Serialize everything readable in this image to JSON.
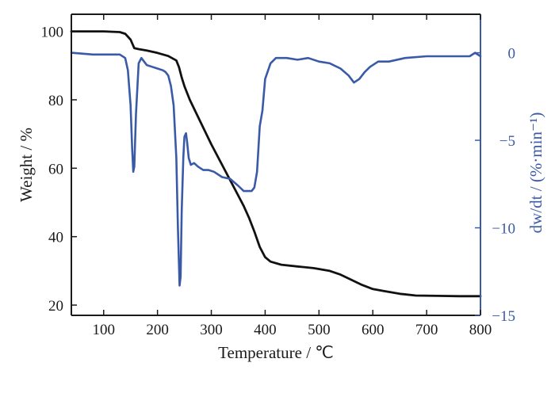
{
  "chart_data": {
    "type": "line",
    "xlabel": "Temperature / ℃",
    "ylabel_left": "Weight / %",
    "ylabel_right": "dw/dt / (%·min⁻¹)",
    "xlim": [
      40,
      800
    ],
    "ylim_left": [
      17,
      105
    ],
    "ylim_right": [
      -15,
      2.2
    ],
    "x_ticks": [
      100,
      200,
      300,
      400,
      500,
      600,
      700,
      800
    ],
    "y_left_ticks": [
      20,
      40,
      60,
      80,
      100
    ],
    "y_right_ticks": [
      0,
      -5,
      -10,
      -15
    ],
    "grid": false,
    "colors": {
      "weight": "#111111",
      "derivative": "#3a5aa8",
      "axis": "#1a1a1a"
    },
    "series": [
      {
        "axis": "left",
        "x": [
          40,
          100,
          130,
          140,
          150,
          157,
          165,
          180,
          200,
          220,
          235,
          240,
          245,
          250,
          260,
          280,
          300,
          320,
          340,
          360,
          370,
          380,
          390,
          400,
          410,
          430,
          460,
          490,
          520,
          540,
          560,
          580,
          600,
          620,
          650,
          680,
          720,
          760,
          800
        ],
        "values": [
          100,
          100,
          99.8,
          99.3,
          97.6,
          95.1,
          94.8,
          94.4,
          93.7,
          92.8,
          91.5,
          89.5,
          86.5,
          84,
          80,
          73.5,
          67,
          61,
          55,
          49,
          45.5,
          41.5,
          37,
          34,
          32.7,
          31.8,
          31.3,
          30.8,
          30,
          28.9,
          27.4,
          25.9,
          24.7,
          24.1,
          23.3,
          22.8,
          22.7,
          22.6,
          22.6
        ]
      },
      {
        "axis": "right",
        "x": [
          40,
          80,
          110,
          130,
          140,
          145,
          150,
          153,
          155,
          157,
          160,
          165,
          170,
          175,
          180,
          190,
          200,
          210,
          215,
          220,
          225,
          230,
          235,
          238,
          241,
          243,
          245,
          248,
          250,
          253,
          255,
          258,
          262,
          268,
          275,
          285,
          295,
          305,
          320,
          335,
          350,
          360,
          368,
          375,
          380,
          385,
          390,
          395,
          400,
          410,
          420,
          440,
          460,
          480,
          500,
          520,
          540,
          555,
          565,
          575,
          585,
          595,
          610,
          630,
          660,
          700,
          740,
          780,
          790,
          800
        ],
        "values": [
          0,
          -0.1,
          -0.1,
          -0.1,
          -0.3,
          -1,
          -3,
          -5.5,
          -6.8,
          -6.5,
          -3.5,
          -0.6,
          -0.3,
          -0.5,
          -0.7,
          -0.8,
          -0.9,
          -1,
          -1.1,
          -1.3,
          -1.9,
          -3,
          -6,
          -10,
          -13.3,
          -12.8,
          -9,
          -6,
          -4.8,
          -4.6,
          -5.1,
          -6,
          -6.4,
          -6.3,
          -6.5,
          -6.7,
          -6.7,
          -6.8,
          -7.1,
          -7.2,
          -7.6,
          -7.9,
          -7.9,
          -7.9,
          -7.7,
          -6.8,
          -4.2,
          -3.3,
          -1.5,
          -0.6,
          -0.3,
          -0.3,
          -0.4,
          -0.3,
          -0.5,
          -0.6,
          -0.9,
          -1.3,
          -1.7,
          -1.5,
          -1.1,
          -0.8,
          -0.5,
          -0.5,
          -0.3,
          -0.2,
          -0.2,
          -0.2,
          0,
          -0.2
        ]
      }
    ]
  }
}
